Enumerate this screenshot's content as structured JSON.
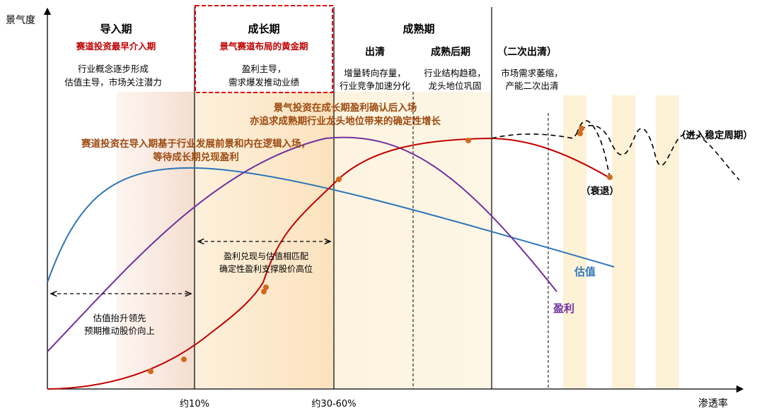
{
  "axes": {
    "y_label": "景气度",
    "x_label": "渗透率",
    "x_ticks": [
      "约10%",
      "约30-60%"
    ]
  },
  "stages": {
    "intro": {
      "title": "导入期",
      "subtitle": "赛道投资最早介入期",
      "desc": [
        "行业概念逐步形成",
        "估值主导，市场关注潜力"
      ]
    },
    "growth": {
      "title": "成长期",
      "subtitle": "景气赛道布局的黄金期",
      "desc": [
        "盈利主导，",
        "需求爆发推动业绩"
      ]
    },
    "mature": {
      "title": "成熟期",
      "clearing": {
        "title": "出清",
        "desc": [
          "增量转向存量，",
          "行业竞争加速分化"
        ]
      },
      "late": {
        "title": "成熟后期",
        "desc": [
          "行业结构趋稳，",
          "龙头地位巩固"
        ]
      }
    },
    "second": {
      "title": "（二次出清）",
      "desc": [
        "市场需求萎缩，",
        "产能二次出清"
      ]
    }
  },
  "annotations": {
    "growth_entry": [
      "景气投资在成长期盈利确认后入场",
      "亦追求成熟期行业龙头地位带来的确定性增长"
    ],
    "track_entry": [
      "赛道投资在导入期基于行业发展前景和内在逻辑入场，",
      "等待成长期兑现盈利"
    ],
    "valuation_lead": [
      "估值抬升领先",
      "预期推动股价向上"
    ],
    "profit_match": [
      "盈利兑现与估值相匹配",
      "确定性盈利支撑股价高位"
    ],
    "stable": "（进入稳定周期）",
    "decline": "（衰退）"
  },
  "legend": {
    "valuation": "估值",
    "profit": "盈利"
  },
  "colors": {
    "red": "#c00000",
    "blue": "#2e75b6",
    "purple": "#7030a0",
    "annotation": "#9c4a10",
    "dot": "#d2691e",
    "band_intro": "#f7e3d8",
    "band_growth": "#fde9c8",
    "band_mature": "#fdf1d6",
    "band_late": "#fdf1d6"
  },
  "icons": {
    "arrow": "double-arrow-dashed"
  }
}
